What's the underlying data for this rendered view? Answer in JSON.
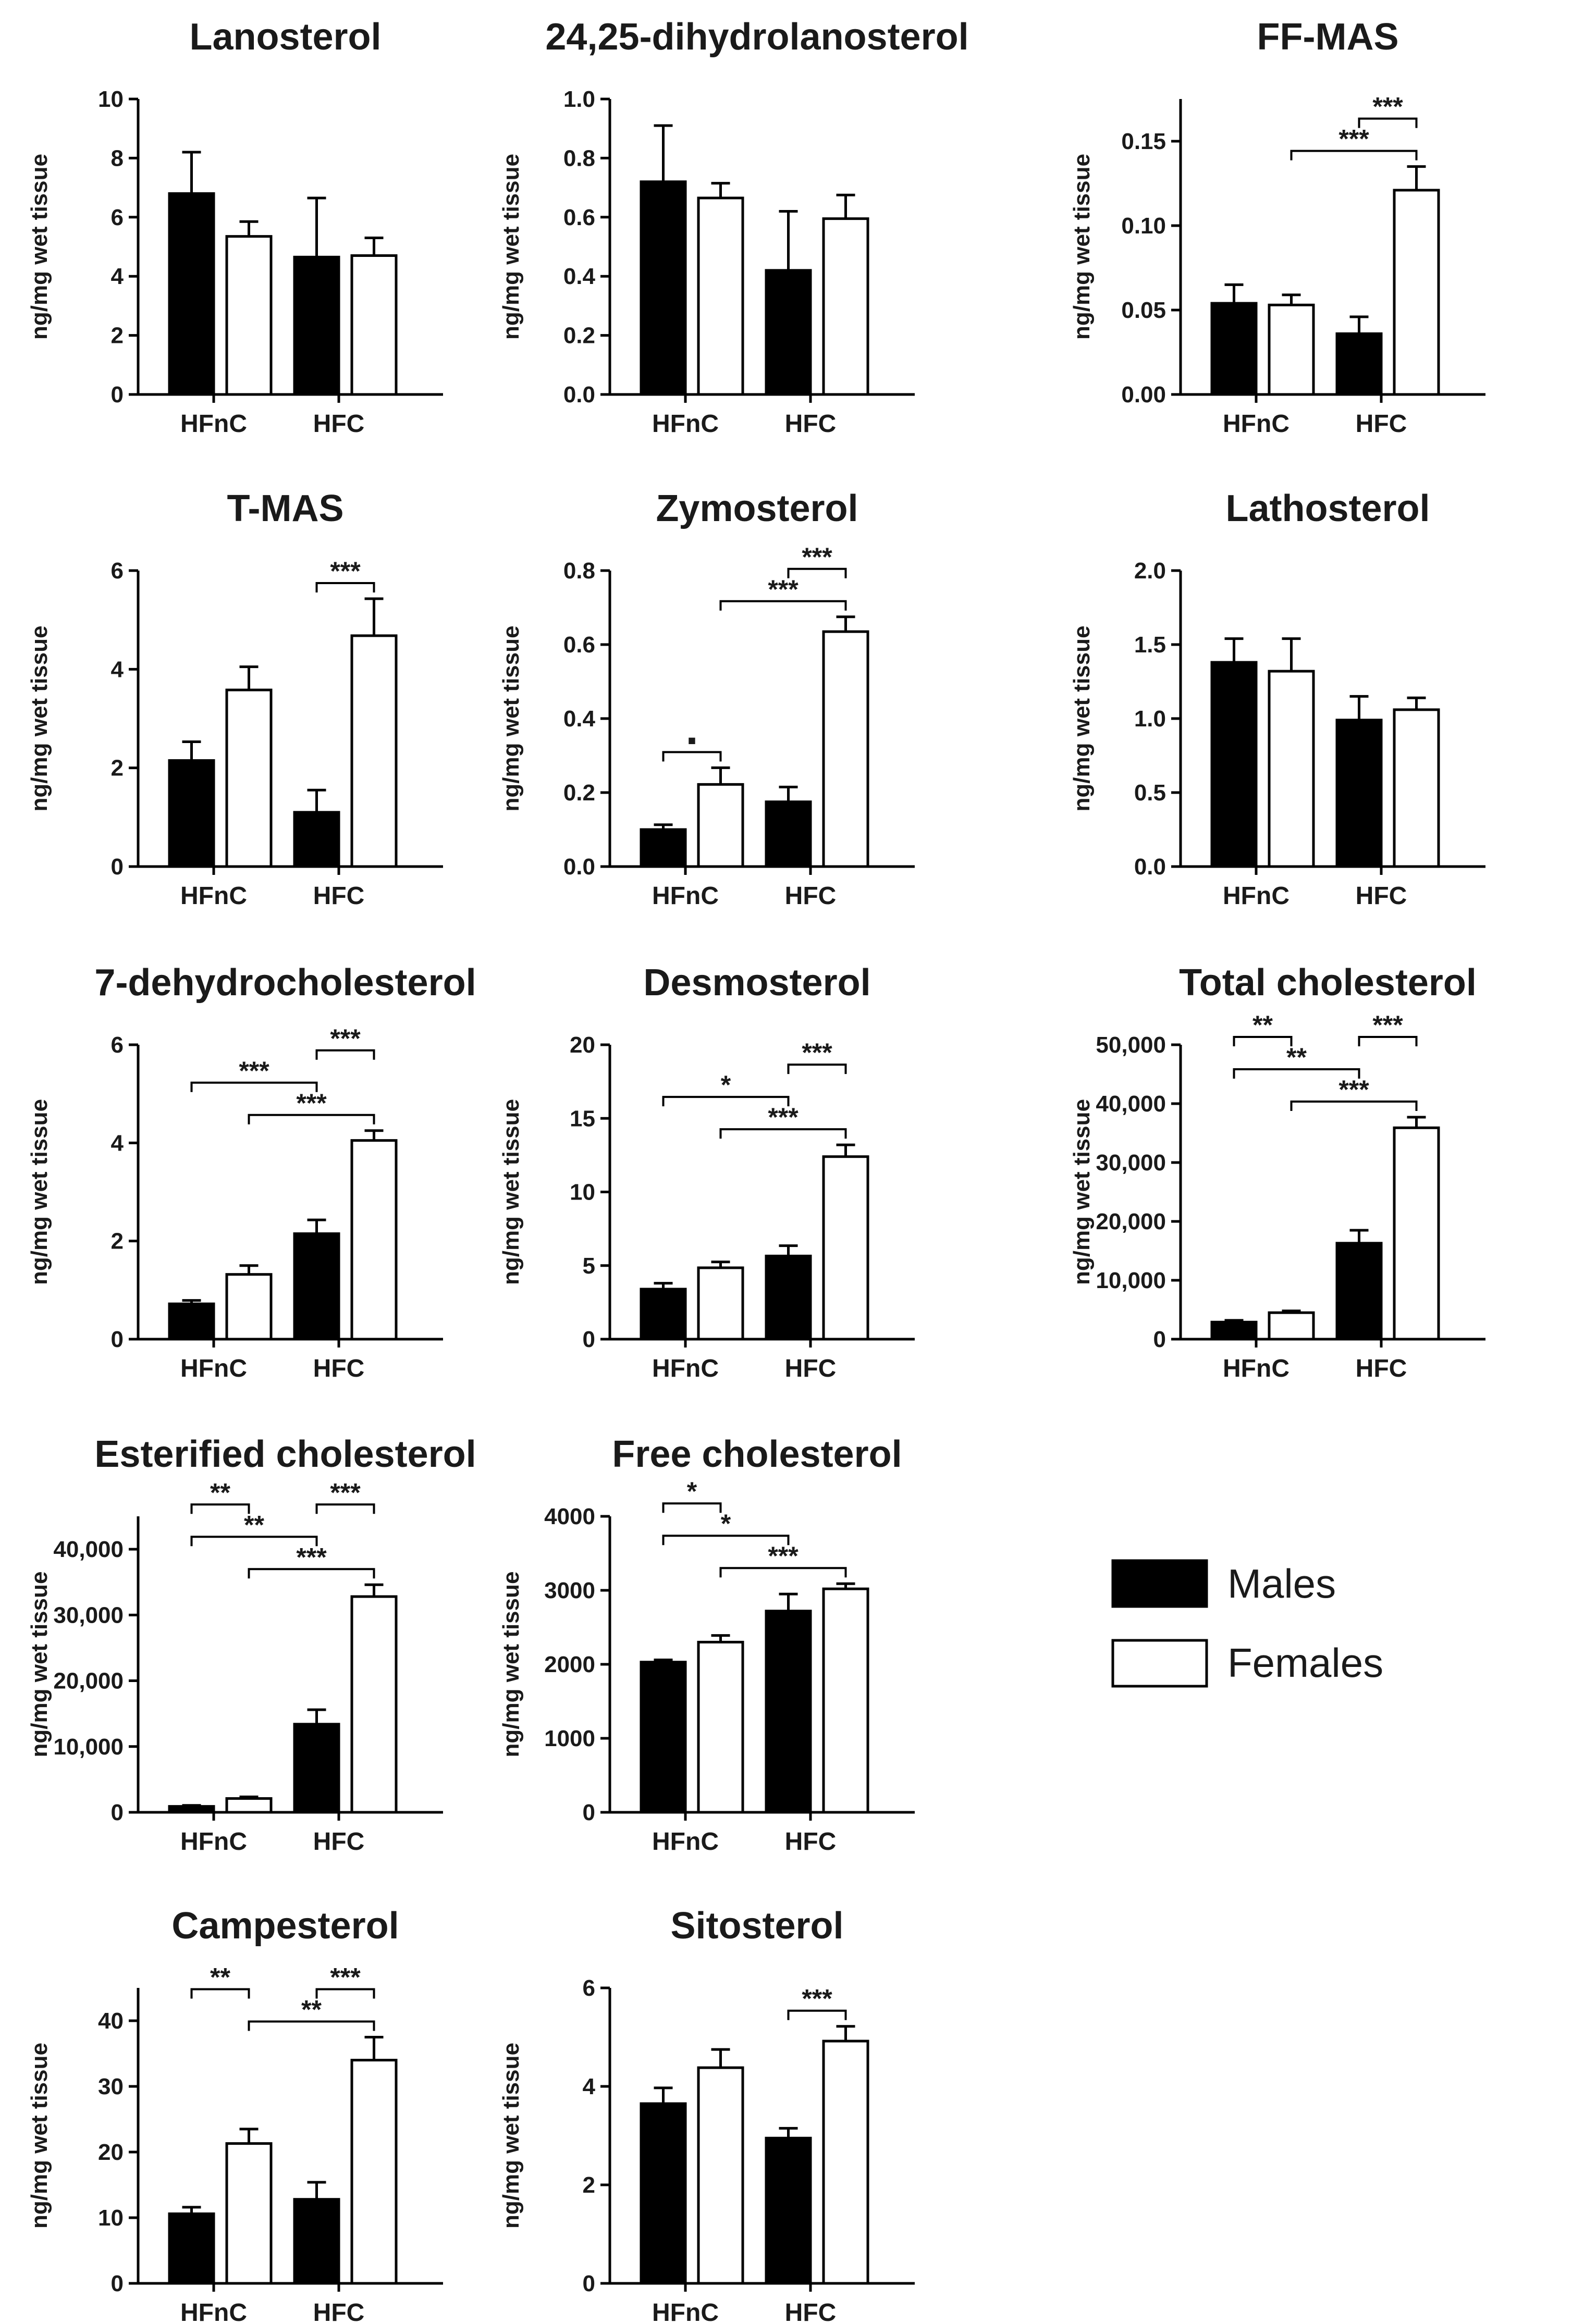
{
  "figure": {
    "legend": [
      {
        "label": "Males",
        "color": "#000000"
      },
      {
        "label": "Females",
        "color": "#ffffff"
      }
    ]
  },
  "chart_data": [
    {
      "type": "bar",
      "title": "Lanosterol",
      "ylabel": "ng/mg wet tissue",
      "categories": [
        "HFnC",
        "HFC"
      ],
      "ylim": [
        0,
        10
      ],
      "yticks": [
        "0",
        "2",
        "4",
        "6",
        "8",
        "10"
      ],
      "ytick_values": [
        0,
        2,
        4,
        6,
        8,
        10
      ],
      "series": [
        {
          "name": "Males",
          "values": [
            6.8,
            4.65
          ],
          "errors": [
            1.4,
            2.0
          ]
        },
        {
          "name": "Females",
          "values": [
            5.35,
            4.7
          ],
          "errors": [
            0.5,
            0.6
          ]
        }
      ],
      "significance": []
    },
    {
      "type": "bar",
      "title": "24,25-dihydrolanosterol",
      "ylabel": "ng/mg wet tissue",
      "categories": [
        "HFnC",
        "HFC"
      ],
      "ylim": [
        0,
        1.0
      ],
      "yticks": [
        "0.0",
        "0.2",
        "0.4",
        "0.6",
        "0.8",
        "1.0"
      ],
      "ytick_values": [
        0,
        0.2,
        0.4,
        0.6,
        0.8,
        1.0
      ],
      "series": [
        {
          "name": "Males",
          "values": [
            0.72,
            0.42
          ],
          "errors": [
            0.19,
            0.2
          ]
        },
        {
          "name": "Females",
          "values": [
            0.665,
            0.595
          ],
          "errors": [
            0.05,
            0.08
          ]
        }
      ],
      "significance": []
    },
    {
      "type": "bar",
      "title": "FF-MAS",
      "ylabel": "ng/mg wet tissue",
      "categories": [
        "HFnC",
        "HFC"
      ],
      "ylim": [
        0,
        0.175
      ],
      "yticks": [
        "0.00",
        "0.05",
        "0.10",
        "0.15"
      ],
      "ytick_values": [
        0,
        0.05,
        0.1,
        0.15
      ],
      "series": [
        {
          "name": "Males",
          "values": [
            0.054,
            0.036
          ],
          "errors": [
            0.011,
            0.01
          ]
        },
        {
          "name": "Females",
          "values": [
            0.053,
            0.121
          ],
          "errors": [
            0.006,
            0.014
          ]
        }
      ],
      "significance": [
        {
          "from": [
            0,
            1
          ],
          "to": [
            1,
            1
          ],
          "label": "***"
        },
        {
          "from": [
            1,
            0
          ],
          "to": [
            1,
            1
          ],
          "label": "***"
        }
      ]
    },
    {
      "type": "bar",
      "title": "T-MAS",
      "ylabel": "ng/mg wet tissue",
      "categories": [
        "HFnC",
        "HFC"
      ],
      "ylim": [
        0,
        6
      ],
      "yticks": [
        "0",
        "2",
        "4",
        "6"
      ],
      "ytick_values": [
        0,
        2,
        4,
        6
      ],
      "series": [
        {
          "name": "Males",
          "values": [
            2.15,
            1.1
          ],
          "errors": [
            0.38,
            0.45
          ]
        },
        {
          "name": "Females",
          "values": [
            3.58,
            4.68
          ],
          "errors": [
            0.47,
            0.75
          ]
        }
      ],
      "significance": [
        {
          "from": [
            1,
            0
          ],
          "to": [
            1,
            1
          ],
          "label": "***"
        }
      ]
    },
    {
      "type": "bar",
      "title": "Zymosterol",
      "ylabel": "ng/mg wet tissue",
      "categories": [
        "HFnC",
        "HFC"
      ],
      "ylim": [
        0,
        0.8
      ],
      "yticks": [
        "0.0",
        "0.2",
        "0.4",
        "0.6",
        "0.8"
      ],
      "ytick_values": [
        0,
        0.2,
        0.4,
        0.6,
        0.8
      ],
      "series": [
        {
          "name": "Males",
          "values": [
            0.1,
            0.175
          ],
          "errors": [
            0.013,
            0.04
          ]
        },
        {
          "name": "Females",
          "values": [
            0.222,
            0.635
          ],
          "errors": [
            0.045,
            0.04
          ]
        }
      ],
      "significance": [
        {
          "from": [
            0,
            0
          ],
          "to": [
            0,
            1
          ],
          "label": "▪"
        },
        {
          "from": [
            0,
            1
          ],
          "to": [
            1,
            1
          ],
          "label": "***"
        },
        {
          "from": [
            1,
            0
          ],
          "to": [
            1,
            1
          ],
          "label": "***"
        }
      ]
    },
    {
      "type": "bar",
      "title": "Lathosterol",
      "ylabel": "ng/mg wet tissue",
      "categories": [
        "HFnC",
        "HFC"
      ],
      "ylim": [
        0,
        2.0
      ],
      "yticks": [
        "0.0",
        "0.5",
        "1.0",
        "1.5",
        "2.0"
      ],
      "ytick_values": [
        0,
        0.5,
        1.0,
        1.5,
        2.0
      ],
      "series": [
        {
          "name": "Males",
          "values": [
            1.38,
            0.99
          ],
          "errors": [
            0.16,
            0.16
          ]
        },
        {
          "name": "Females",
          "values": [
            1.32,
            1.06
          ],
          "errors": [
            0.22,
            0.08
          ]
        }
      ],
      "significance": []
    },
    {
      "type": "bar",
      "title": "7-dehydrocholesterol",
      "ylabel": "ng/mg wet tissue",
      "categories": [
        "HFnC",
        "HFC"
      ],
      "ylim": [
        0,
        6
      ],
      "yticks": [
        "0",
        "2",
        "4",
        "6"
      ],
      "ytick_values": [
        0,
        2,
        4,
        6
      ],
      "series": [
        {
          "name": "Males",
          "values": [
            0.72,
            2.15
          ],
          "errors": [
            0.07,
            0.28
          ]
        },
        {
          "name": "Females",
          "values": [
            1.32,
            4.05
          ],
          "errors": [
            0.18,
            0.2
          ]
        }
      ],
      "significance": [
        {
          "from": [
            0,
            1
          ],
          "to": [
            1,
            1
          ],
          "label": "***"
        },
        {
          "from": [
            0,
            0
          ],
          "to": [
            1,
            0
          ],
          "label": "***"
        },
        {
          "from": [
            1,
            0
          ],
          "to": [
            1,
            1
          ],
          "label": "***"
        }
      ]
    },
    {
      "type": "bar",
      "title": "Desmosterol",
      "ylabel": "ng/mg wet tissue",
      "categories": [
        "HFnC",
        "HFC"
      ],
      "ylim": [
        0,
        20
      ],
      "yticks": [
        "0",
        "5",
        "10",
        "15",
        "20"
      ],
      "ytick_values": [
        0,
        5,
        10,
        15,
        20
      ],
      "series": [
        {
          "name": "Males",
          "values": [
            3.4,
            5.65
          ],
          "errors": [
            0.4,
            0.7
          ]
        },
        {
          "name": "Females",
          "values": [
            4.85,
            12.4
          ],
          "errors": [
            0.4,
            0.8
          ]
        }
      ],
      "significance": [
        {
          "from": [
            0,
            1
          ],
          "to": [
            1,
            1
          ],
          "label": "***"
        },
        {
          "from": [
            0,
            0
          ],
          "to": [
            1,
            0
          ],
          "label": "*"
        },
        {
          "from": [
            1,
            0
          ],
          "to": [
            1,
            1
          ],
          "label": "***"
        }
      ]
    },
    {
      "type": "bar",
      "title": "Total cholesterol",
      "ylabel": "ng/mg wet tissue",
      "categories": [
        "HFnC",
        "HFC"
      ],
      "ylim": [
        0,
        50000
      ],
      "yticks": [
        "0",
        "10,000",
        "20,000",
        "30,000",
        "40,000",
        "50,000"
      ],
      "ytick_values": [
        0,
        10000,
        20000,
        30000,
        40000,
        50000
      ],
      "series": [
        {
          "name": "Males",
          "values": [
            2900,
            16300
          ],
          "errors": [
            300,
            2200
          ]
        },
        {
          "name": "Females",
          "values": [
            4500,
            35900
          ],
          "errors": [
            300,
            1800
          ]
        }
      ],
      "significance": [
        {
          "from": [
            0,
            1
          ],
          "to": [
            1,
            1
          ],
          "label": "***"
        },
        {
          "from": [
            0,
            0
          ],
          "to": [
            1,
            0
          ],
          "label": "**"
        },
        {
          "from": [
            0,
            0
          ],
          "to": [
            0,
            1
          ],
          "label": "**"
        },
        {
          "from": [
            1,
            0
          ],
          "to": [
            1,
            1
          ],
          "label": "***"
        }
      ]
    },
    {
      "type": "bar",
      "title": "Esterified cholesterol",
      "ylabel": "ng/mg wet tissue",
      "categories": [
        "HFnC",
        "HFC"
      ],
      "ylim": [
        0,
        45000
      ],
      "yticks": [
        "0",
        "10,000",
        "20,000",
        "30,000",
        "40,000"
      ],
      "ytick_values": [
        0,
        10000,
        20000,
        30000,
        40000
      ],
      "series": [
        {
          "name": "Males",
          "values": [
            900,
            13400
          ],
          "errors": [
            150,
            2200
          ]
        },
        {
          "name": "Females",
          "values": [
            2100,
            32800
          ],
          "errors": [
            250,
            1800
          ]
        }
      ],
      "significance": [
        {
          "from": [
            0,
            1
          ],
          "to": [
            1,
            1
          ],
          "label": "***"
        },
        {
          "from": [
            0,
            0
          ],
          "to": [
            1,
            0
          ],
          "label": "**"
        },
        {
          "from": [
            0,
            0
          ],
          "to": [
            0,
            1
          ],
          "label": "**"
        },
        {
          "from": [
            1,
            0
          ],
          "to": [
            1,
            1
          ],
          "label": "***"
        }
      ]
    },
    {
      "type": "bar",
      "title": "Free cholesterol",
      "ylabel": "ng/mg wet tissue",
      "categories": [
        "HFnC",
        "HFC"
      ],
      "ylim": [
        0,
        4000
      ],
      "yticks": [
        "0",
        "1000",
        "2000",
        "3000",
        "4000"
      ],
      "ytick_values": [
        0,
        1000,
        2000,
        3000,
        4000
      ],
      "series": [
        {
          "name": "Males",
          "values": [
            2030,
            2720
          ],
          "errors": [
            30,
            230
          ]
        },
        {
          "name": "Females",
          "values": [
            2300,
            3020
          ],
          "errors": [
            90,
            70
          ]
        }
      ],
      "significance": [
        {
          "from": [
            0,
            1
          ],
          "to": [
            1,
            1
          ],
          "label": "***"
        },
        {
          "from": [
            0,
            0
          ],
          "to": [
            1,
            0
          ],
          "label": "*"
        },
        {
          "from": [
            0,
            0
          ],
          "to": [
            0,
            1
          ],
          "label": "*"
        }
      ]
    },
    {
      "type": "bar",
      "title": "Campesterol",
      "ylabel": "ng/mg wet tissue",
      "categories": [
        "HFnC",
        "HFC"
      ],
      "ylim": [
        0,
        45
      ],
      "yticks": [
        "0",
        "10",
        "20",
        "30",
        "40"
      ],
      "ytick_values": [
        0,
        10,
        20,
        30,
        40
      ],
      "series": [
        {
          "name": "Males",
          "values": [
            10.6,
            12.8
          ],
          "errors": [
            1.0,
            2.6
          ]
        },
        {
          "name": "Females",
          "values": [
            21.3,
            34.0
          ],
          "errors": [
            2.2,
            3.5
          ]
        }
      ],
      "significance": [
        {
          "from": [
            0,
            1
          ],
          "to": [
            1,
            1
          ],
          "label": "**"
        },
        {
          "from": [
            0,
            0
          ],
          "to": [
            0,
            1
          ],
          "label": "**"
        },
        {
          "from": [
            1,
            0
          ],
          "to": [
            1,
            1
          ],
          "label": "***"
        }
      ]
    },
    {
      "type": "bar",
      "title": "Sitosterol",
      "ylabel": "ng/mg wet tissue",
      "categories": [
        "HFnC",
        "HFC"
      ],
      "ylim": [
        0,
        6
      ],
      "yticks": [
        "0",
        "2",
        "4",
        "6"
      ],
      "ytick_values": [
        0,
        2,
        4,
        6
      ],
      "series": [
        {
          "name": "Males",
          "values": [
            3.65,
            2.95
          ],
          "errors": [
            0.32,
            0.2
          ]
        },
        {
          "name": "Females",
          "values": [
            4.38,
            4.92
          ],
          "errors": [
            0.37,
            0.3
          ]
        }
      ],
      "significance": [
        {
          "from": [
            1,
            0
          ],
          "to": [
            1,
            1
          ],
          "label": "***"
        }
      ]
    }
  ]
}
